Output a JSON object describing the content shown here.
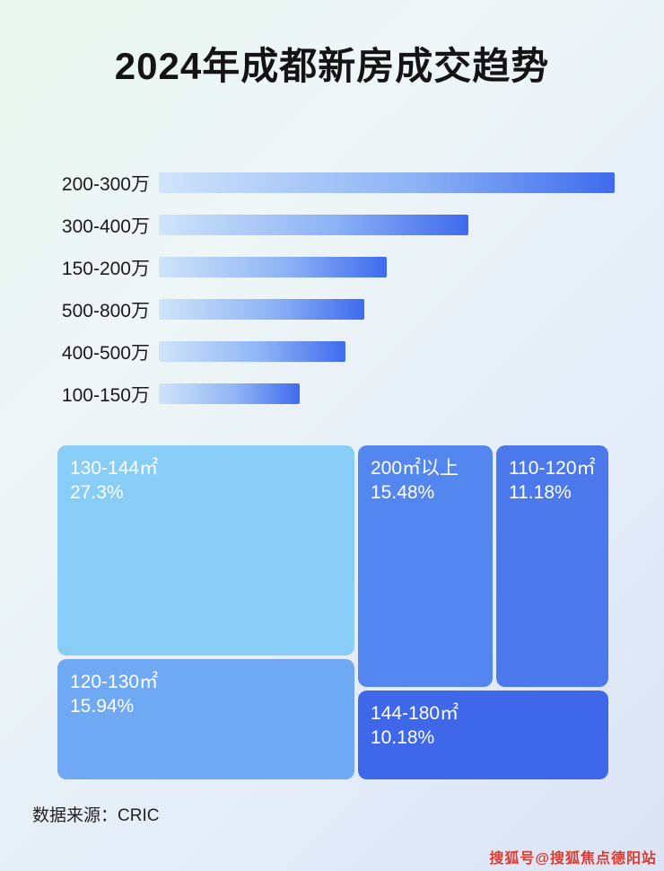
{
  "title": "2024年成都新房成交趋势",
  "footer": {
    "source_label": "数据来源：CRIC"
  },
  "watermark": "搜狐号@搜狐焦点德阳站",
  "colors": {
    "bar_gradient_start": "#cfe4fa",
    "bar_gradient_end": "#3f6bee",
    "title_text": "#141414",
    "watermark_red": "#e03a2f"
  },
  "chart_data": [
    {
      "type": "bar",
      "orientation": "horizontal",
      "title": "2024年成都新房成交趋势",
      "categories": [
        "200-300万",
        "300-400万",
        "150-200万",
        "500-800万",
        "400-500万",
        "100-150万"
      ],
      "values": [
        100,
        68,
        50,
        45,
        41,
        31
      ],
      "value_note": "relative bar length, percent of longest bar; no numeric axis shown",
      "xlabel": "",
      "ylabel": "",
      "grid": false,
      "legend": false
    },
    {
      "type": "treemap",
      "title": "",
      "items": [
        {
          "label": "130-144㎡",
          "value": 27.3,
          "display": "27.3%",
          "color": "#87cdf5"
        },
        {
          "label": "200㎡以上",
          "value": 15.48,
          "display": "15.48%",
          "color": "#5486ef"
        },
        {
          "label": "110-120㎡",
          "value": 11.18,
          "display": "11.18%",
          "color": "#4b79ec"
        },
        {
          "label": "120-130㎡",
          "value": 15.94,
          "display": "15.94%",
          "color": "#6fa9f3"
        },
        {
          "label": "144-180㎡",
          "value": 10.18,
          "display": "10.18%",
          "color": "#3e68e9"
        }
      ],
      "legend": false
    }
  ]
}
